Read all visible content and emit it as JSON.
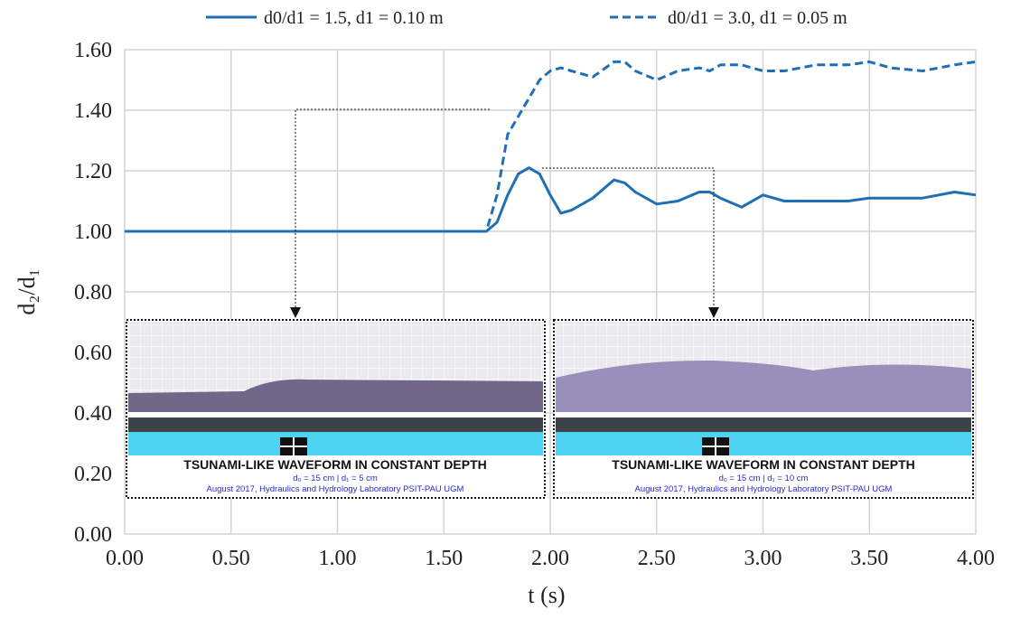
{
  "chart_data": {
    "type": "line",
    "x_label": "t (s)",
    "y_label": "d₂/d₁",
    "x": [
      0,
      0.5,
      1.0,
      1.5,
      1.7,
      1.75,
      1.8,
      1.85,
      1.9,
      1.95,
      2.0,
      2.05,
      2.1,
      2.2,
      2.3,
      2.35,
      2.4,
      2.5,
      2.6,
      2.7,
      2.75,
      2.8,
      2.9,
      3.0,
      3.1,
      3.25,
      3.4,
      3.5,
      3.6,
      3.75,
      3.9,
      4.0
    ],
    "series": [
      {
        "name": "d0/d1 = 1.5, d1 = 0.10 m",
        "color": "#1f6fb7",
        "dash": false,
        "values": [
          1,
          1,
          1,
          1,
          1.0,
          1.03,
          1.12,
          1.19,
          1.21,
          1.19,
          1.12,
          1.06,
          1.07,
          1.11,
          1.17,
          1.16,
          1.13,
          1.09,
          1.1,
          1.13,
          1.13,
          1.11,
          1.08,
          1.12,
          1.1,
          1.1,
          1.1,
          1.11,
          1.11,
          1.11,
          1.13,
          1.12
        ]
      },
      {
        "name": "d0/d1 = 3.0, d1 = 0.05 m",
        "color": "#1f6fb7",
        "dash": true,
        "values": [
          1,
          1,
          1,
          1,
          1.0,
          1.12,
          1.32,
          1.38,
          1.44,
          1.5,
          1.53,
          1.54,
          1.53,
          1.51,
          1.56,
          1.56,
          1.53,
          1.5,
          1.53,
          1.54,
          1.53,
          1.55,
          1.55,
          1.53,
          1.53,
          1.55,
          1.55,
          1.56,
          1.54,
          1.53,
          1.55,
          1.56
        ]
      }
    ],
    "xlim": [
      0,
      4
    ],
    "ylim": [
      0,
      1.6
    ],
    "xticks": [
      {
        "value": 0,
        "label": "0.00"
      },
      {
        "value": 0.5,
        "label": "0.50"
      },
      {
        "value": 1,
        "label": "1.00"
      },
      {
        "value": 1.5,
        "label": "1.50"
      },
      {
        "value": 2,
        "label": "2.00"
      },
      {
        "value": 2.5,
        "label": "2.50"
      },
      {
        "value": 3,
        "label": "3.00"
      },
      {
        "value": 3.5,
        "label": "3.50"
      },
      {
        "value": 4,
        "label": "4.00"
      }
    ],
    "yticks": [
      {
        "value": 0,
        "label": "0.00"
      },
      {
        "value": 0.2,
        "label": "0.20"
      },
      {
        "value": 0.4,
        "label": "0.40"
      },
      {
        "value": 0.6,
        "label": "0.60"
      },
      {
        "value": 0.8,
        "label": "0.80"
      },
      {
        "value": 1,
        "label": "1.00"
      },
      {
        "value": 1.2,
        "label": "1.20"
      },
      {
        "value": 1.4,
        "label": "1.40"
      },
      {
        "value": 1.6,
        "label": "1.60"
      }
    ],
    "grid": true,
    "insets": [
      {
        "title": "TSUNAMI-LIKE WAVEFORM IN CONSTANT DEPTH",
        "subtitle": "d₀ = 15 cm | d₁ = 5 cm",
        "credit": "August 2017, Hydraulics and Hydrology Laboratory PSIT-PAU UGM"
      },
      {
        "title": "TSUNAMI-LIKE WAVEFORM IN CONSTANT DEPTH",
        "subtitle": "d₀ = 15 cm | d₁ = 10 cm",
        "credit": "August 2017, Hydraulics and Hydrology Laboratory PSIT-PAU UGM"
      }
    ]
  }
}
